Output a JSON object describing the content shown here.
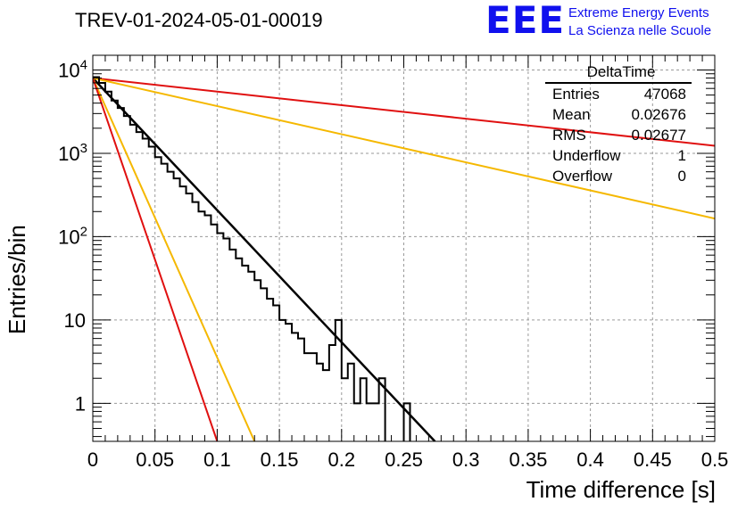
{
  "header": {
    "title": "TREV-01-2024-05-01-00019"
  },
  "brand": {
    "logo_text": "EEE",
    "line1": "Extreme Energy Events",
    "line2": "La Scienza nelle Scuole",
    "color": "#1010ee"
  },
  "stats_box": {
    "title": "DeltaTime",
    "rows": [
      {
        "label": "Entries",
        "value": "47068"
      },
      {
        "label": "Mean",
        "value": "0.02676"
      },
      {
        "label": "RMS",
        "value": "0.02677"
      },
      {
        "label": "Underflow",
        "value": "1"
      },
      {
        "label": "Overflow",
        "value": "0"
      }
    ]
  },
  "chart_data": {
    "type": "line",
    "title": "TREV-01-2024-05-01-00019",
    "xlabel": "Time difference [s]",
    "ylabel": "Entries/bin",
    "xlim": [
      0,
      0.5
    ],
    "ylim": [
      0.35,
      15000
    ],
    "yscale": "log",
    "grid": true,
    "x_ticks": [
      "0",
      "0.05",
      "0.1",
      "0.15",
      "0.2",
      "0.25",
      "0.3",
      "0.35",
      "0.4",
      "0.45",
      "0.5"
    ],
    "y_ticks": [
      "1",
      "10",
      "10^2",
      "10^3",
      "10^4"
    ],
    "histogram": {
      "name": "DeltaTime",
      "bin_width": 0.005,
      "color": "#000000",
      "counts": [
        8200,
        7000,
        5500,
        4300,
        3500,
        2800,
        2200,
        1800,
        1500,
        1200,
        900,
        750,
        600,
        500,
        400,
        330,
        260,
        200,
        180,
        140,
        110,
        95,
        70,
        55,
        45,
        38,
        30,
        24,
        18,
        15,
        10,
        9,
        7,
        6,
        4,
        4,
        3,
        2.5,
        5,
        10,
        2,
        3,
        1,
        2,
        1,
        1,
        2,
        0,
        0,
        0,
        1,
        0,
        0,
        0,
        0,
        0,
        0,
        0,
        0,
        0,
        0,
        0
      ]
    },
    "fit_lines": [
      {
        "color": "#000000",
        "x0": 0,
        "y0": 8000,
        "x1": 0.275,
        "y1": 0.32
      },
      {
        "color": "#e01010",
        "x0": 0,
        "y0": 8000,
        "x1": 0.5,
        "y1": 1230
      },
      {
        "color": "#f5b800",
        "x0": 0,
        "y0": 8000,
        "x1": 0.5,
        "y1": 165
      },
      {
        "color": "#f5b800",
        "x0": 0,
        "y0": 8000,
        "x1": 0.13,
        "y1": 0.3
      },
      {
        "color": "#e01010",
        "x0": 0,
        "y0": 8000,
        "x1": 0.1,
        "y1": 0.3
      }
    ]
  }
}
